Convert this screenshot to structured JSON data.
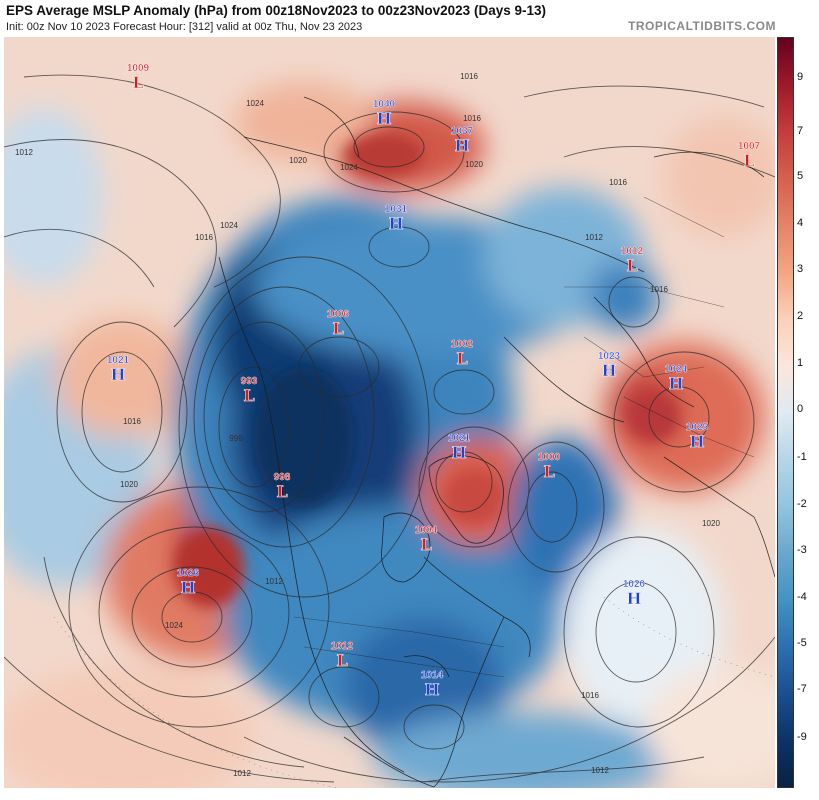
{
  "header": {
    "title": "EPS Average MSLP Anomaly (hPa) from 00z18Nov2023 to 00z23Nov2023 (Days 9-13)",
    "subtitle": "Init: 00z Nov 10 2023   Forecast Hour: [312]   valid at 00z Thu, Nov 23 2023",
    "brand": "TROPICALTIDBITS.COM"
  },
  "colorbar": {
    "ticks": [
      "9",
      "7",
      "5",
      "4",
      "3",
      "2",
      "1",
      "0",
      "-1",
      "-2",
      "-3",
      "-4",
      "-5",
      "-7",
      "-9"
    ],
    "colors": [
      "#67001f",
      "#9e1a2a",
      "#c43c3c",
      "#d6604d",
      "#e58368",
      "#f4a582",
      "#fbd0b9",
      "#fbe6dc",
      "#dfeaf2",
      "#b6d5e8",
      "#92c5de",
      "#6aa7cc",
      "#4393c3",
      "#2c6fb0",
      "#1b4f8f",
      "#0b3366",
      "#082244"
    ]
  },
  "pressure_systems": [
    {
      "type": "L",
      "value": "1009",
      "color": "#d7191c"
    },
    {
      "type": "H",
      "value": "1040",
      "color": "#2040d0"
    },
    {
      "type": "H",
      "value": "1037",
      "color": "#2040d0"
    },
    {
      "type": "L",
      "value": "1007",
      "color": "#d7191c"
    },
    {
      "type": "H",
      "value": "1031",
      "color": "#2040d0"
    },
    {
      "type": "L",
      "value": "1012",
      "color": "#d7191c"
    },
    {
      "type": "L",
      "value": "1006",
      "color": "#d7191c"
    },
    {
      "type": "L",
      "value": "1002",
      "color": "#d7191c"
    },
    {
      "type": "H",
      "value": "1021",
      "color": "#2040d0"
    },
    {
      "type": "L",
      "value": "993",
      "color": "#d7191c"
    },
    {
      "type": "H",
      "value": "1023",
      "color": "#2040d0"
    },
    {
      "type": "H",
      "value": "1024",
      "color": "#2040d0"
    },
    {
      "type": "H",
      "value": "1021",
      "color": "#2040d0"
    },
    {
      "type": "L",
      "value": "1000",
      "color": "#d7191c"
    },
    {
      "type": "H",
      "value": "1025",
      "color": "#2040d0"
    },
    {
      "type": "L",
      "value": "998",
      "color": "#d7191c"
    },
    {
      "type": "L",
      "value": "1004",
      "color": "#d7191c"
    },
    {
      "type": "H",
      "value": "1026",
      "color": "#2040d0"
    },
    {
      "type": "H",
      "value": "1020",
      "color": "#2040d0"
    },
    {
      "type": "L",
      "value": "1012",
      "color": "#d7191c"
    },
    {
      "type": "H",
      "value": "1014",
      "color": "#2040d0"
    }
  ],
  "isobar_labels": [
    "1016",
    "1024",
    "1012",
    "1016",
    "1020",
    "1020",
    "1016",
    "1024",
    "1016",
    "1012",
    "1016",
    "996",
    "1024",
    "1012",
    "1020",
    "1016",
    "1020",
    "1016",
    "1012",
    "1012",
    "1024"
  ]
}
